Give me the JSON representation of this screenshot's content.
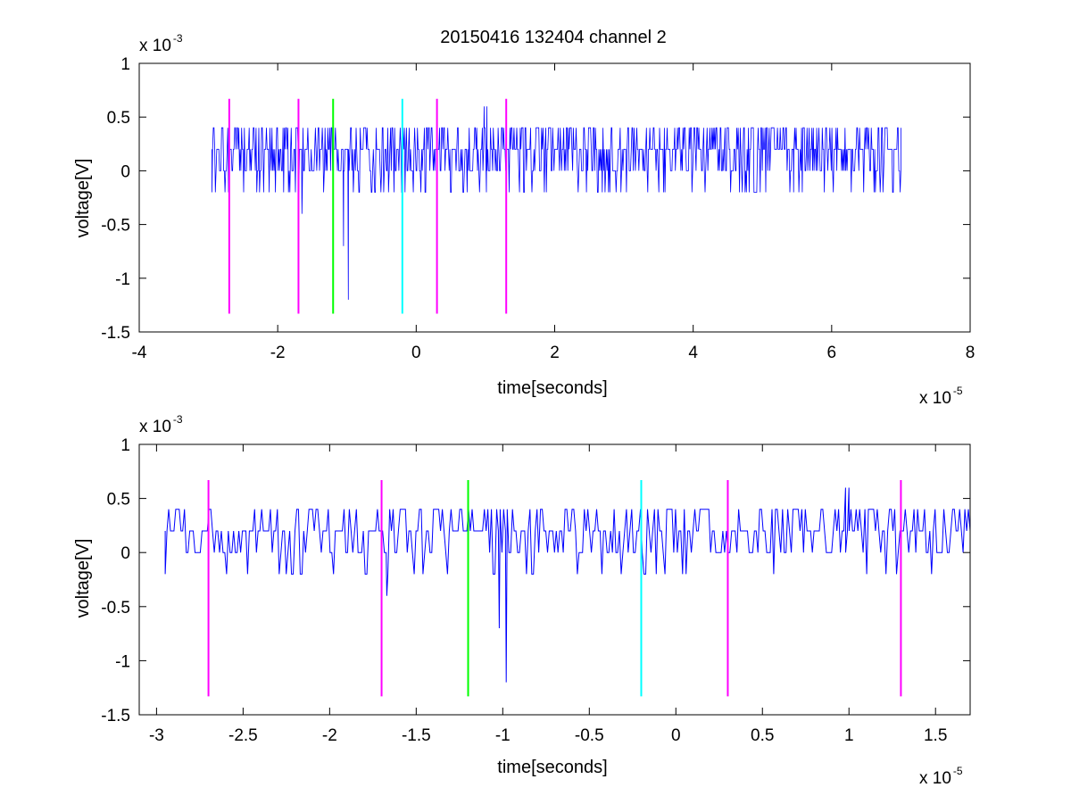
{
  "figure_title": "20150416 132404 channel 2",
  "colors": {
    "signal": "#0000ff",
    "magenta_marker": "#ff00ff",
    "green_marker": "#00ff00",
    "cyan_marker": "#00ffff",
    "axes": "#000000",
    "background": "#ffffff"
  },
  "chart_data": [
    {
      "type": "line",
      "title": "20150416 132404 channel 2",
      "xlabel": "time[seconds]",
      "ylabel": "voltage[V]",
      "x_scale_label": "x 10",
      "x_scale_exponent": "-5",
      "y_scale_label": "x 10",
      "y_scale_exponent": "-3",
      "xlim": [
        -4,
        8
      ],
      "ylim": [
        -1.5,
        1
      ],
      "x_ticks": [
        -4,
        -2,
        0,
        2,
        4,
        6,
        8
      ],
      "x_tick_labels": [
        "-4",
        "-2",
        "0",
        "2",
        "4",
        "6",
        "8"
      ],
      "y_ticks": [
        -1.5,
        -1,
        -0.5,
        0,
        0.5,
        1
      ],
      "y_tick_labels": [
        "-1.5",
        "-1",
        "-0.5",
        "0",
        "0.5",
        "1"
      ],
      "grid": false,
      "signal_x_range": [
        -2.95,
        7.0
      ],
      "markers": [
        {
          "x": -2.7,
          "color": "magenta",
          "ymin": -1.33,
          "ymax": 0.67
        },
        {
          "x": -1.7,
          "color": "magenta",
          "ymin": -1.33,
          "ymax": 0.67
        },
        {
          "x": -1.2,
          "color": "green",
          "ymin": -1.33,
          "ymax": 0.67
        },
        {
          "x": -0.2,
          "color": "cyan",
          "ymin": -1.33,
          "ymax": 0.67
        },
        {
          "x": 0.3,
          "color": "magenta",
          "ymin": -1.33,
          "ymax": 0.67
        },
        {
          "x": 1.3,
          "color": "magenta",
          "ymin": -1.33,
          "ymax": 0.67
        }
      ],
      "notable_points": [
        {
          "x": -2.95,
          "y": -0.2
        },
        {
          "x": -1.65,
          "y": -0.4
        },
        {
          "x": -1.05,
          "y": -0.7
        },
        {
          "x": -0.98,
          "y": -1.2
        },
        {
          "x": 0.98,
          "y": 0.6
        },
        {
          "x": 1.02,
          "y": 0.6
        },
        {
          "x": 5.45,
          "y": -0.2
        },
        {
          "x": 7.0,
          "y": 0.4
        }
      ],
      "signal_levels": [
        -0.2,
        0,
        0.2,
        0.4
      ],
      "baseline": 0.2
    },
    {
      "type": "line",
      "xlabel": "time[seconds]",
      "ylabel": "voltage[V]",
      "x_scale_label": "x 10",
      "x_scale_exponent": "-5",
      "y_scale_label": "x 10",
      "y_scale_exponent": "-3",
      "xlim": [
        -3.1,
        1.7
      ],
      "ylim": [
        -1.5,
        1
      ],
      "x_ticks": [
        -3,
        -2.5,
        -2,
        -1.5,
        -1,
        -0.5,
        0,
        0.5,
        1,
        1.5
      ],
      "x_tick_labels": [
        "-3",
        "-2.5",
        "-2",
        "-1.5",
        "-1",
        "-0.5",
        "0",
        "0.5",
        "1",
        "1.5"
      ],
      "y_ticks": [
        -1.5,
        -1,
        -0.5,
        0,
        0.5,
        1
      ],
      "y_tick_labels": [
        "-1.5",
        "-1",
        "-0.5",
        "0",
        "0.5",
        "1"
      ],
      "grid": false,
      "signal_x_range": [
        -2.95,
        1.7
      ],
      "markers": [
        {
          "x": -2.7,
          "color": "magenta",
          "ymin": -1.33,
          "ymax": 0.67
        },
        {
          "x": -1.7,
          "color": "magenta",
          "ymin": -1.33,
          "ymax": 0.67
        },
        {
          "x": -1.2,
          "color": "green",
          "ymin": -1.33,
          "ymax": 0.67
        },
        {
          "x": -0.2,
          "color": "cyan",
          "ymin": -1.33,
          "ymax": 0.67
        },
        {
          "x": 0.3,
          "color": "magenta",
          "ymin": -1.33,
          "ymax": 0.67
        },
        {
          "x": 1.3,
          "color": "magenta",
          "ymin": -1.33,
          "ymax": 0.67
        }
      ],
      "notable_points": [
        {
          "x": -2.95,
          "y": -0.2
        },
        {
          "x": -2.88,
          "y": 0.4
        },
        {
          "x": -1.67,
          "y": -0.4
        },
        {
          "x": -1.02,
          "y": -0.7
        },
        {
          "x": -0.98,
          "y": -1.2
        },
        {
          "x": 0.98,
          "y": 0.6
        },
        {
          "x": 1.0,
          "y": 0.6
        },
        {
          "x": 1.7,
          "y": 0.2
        }
      ],
      "signal_levels": [
        -0.2,
        0,
        0.2,
        0.4
      ],
      "baseline": 0.2
    }
  ]
}
